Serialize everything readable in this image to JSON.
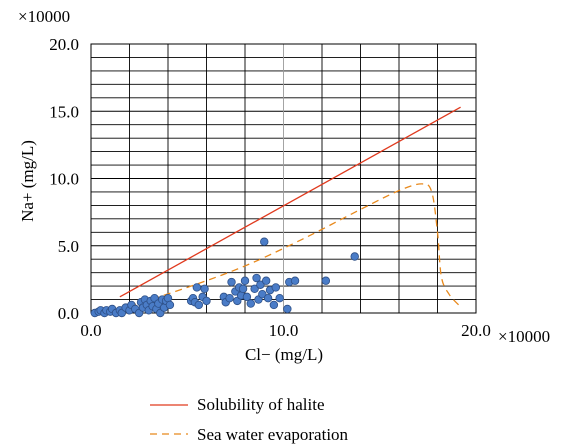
{
  "chart_data": {
    "type": "scatter",
    "xlabel": "Cl− (mg/L)",
    "ylabel": "Na+ (mg/L)",
    "x_scale_label": "×10000",
    "y_scale_label": "×10000",
    "xlim": [
      0,
      20
    ],
    "ylim": [
      0,
      20
    ],
    "x_ticks": [
      0,
      10,
      20
    ],
    "x_tick_labels": [
      "0.0",
      "10.0",
      "20.0"
    ],
    "y_ticks": [
      0,
      5,
      10,
      15,
      20
    ],
    "y_tick_labels": [
      "0.0",
      "5.0",
      "10.0",
      "15.0",
      "20.0"
    ],
    "grid": true,
    "legend_position": "bottom-left",
    "colors": {
      "halite": "#e03a1e",
      "seawater": "#e8891c",
      "points": "#4a7cc7",
      "grid": "#000000"
    },
    "lines": [
      {
        "name": "Solubility of halite",
        "style": "solid",
        "points": [
          [
            1.5,
            1.2
          ],
          [
            19.2,
            15.3
          ]
        ]
      },
      {
        "name": "Sea water evaporation",
        "style": "dashed",
        "points": [
          [
            2.0,
            0.5
          ],
          [
            5,
            1.9
          ],
          [
            8,
            3.5
          ],
          [
            11,
            5.5
          ],
          [
            14,
            7.7
          ],
          [
            16,
            9.1
          ],
          [
            17.2,
            9.6
          ],
          [
            17.7,
            9.0
          ],
          [
            18.0,
            6.0
          ],
          [
            18.2,
            2.7
          ],
          [
            18.6,
            1.4
          ],
          [
            19.1,
            0.6
          ]
        ]
      }
    ],
    "series": [
      {
        "marker": "circle",
        "points": [
          [
            0.2,
            0.0
          ],
          [
            0.4,
            0.1
          ],
          [
            0.5,
            0.2
          ],
          [
            0.7,
            0.0
          ],
          [
            0.8,
            0.2
          ],
          [
            1.0,
            0.1
          ],
          [
            1.1,
            0.3
          ],
          [
            1.3,
            0.0
          ],
          [
            1.5,
            0.2
          ],
          [
            1.6,
            0.0
          ],
          [
            1.8,
            0.4
          ],
          [
            2.0,
            0.2
          ],
          [
            2.1,
            0.6
          ],
          [
            2.3,
            0.3
          ],
          [
            2.5,
            0.0
          ],
          [
            2.6,
            0.8
          ],
          [
            2.7,
            0.4
          ],
          [
            2.8,
            1.0
          ],
          [
            2.9,
            0.6
          ],
          [
            3.0,
            0.2
          ],
          [
            3.1,
            0.9
          ],
          [
            3.2,
            0.5
          ],
          [
            3.3,
            1.1
          ],
          [
            3.4,
            0.3
          ],
          [
            3.5,
            0.7
          ],
          [
            3.6,
            0.0
          ],
          [
            3.7,
            1.0
          ],
          [
            3.8,
            0.4
          ],
          [
            3.9,
            0.9
          ],
          [
            4.0,
            1.1
          ],
          [
            4.1,
            0.6
          ],
          [
            5.2,
            0.9
          ],
          [
            5.3,
            1.1
          ],
          [
            5.4,
            0.8
          ],
          [
            5.5,
            1.9
          ],
          [
            5.6,
            0.6
          ],
          [
            5.8,
            1.2
          ],
          [
            5.9,
            1.8
          ],
          [
            6.0,
            0.9
          ],
          [
            6.9,
            1.2
          ],
          [
            7.0,
            0.8
          ],
          [
            7.2,
            1.1
          ],
          [
            7.3,
            2.3
          ],
          [
            7.5,
            1.6
          ],
          [
            7.6,
            0.9
          ],
          [
            7.7,
            1.9
          ],
          [
            7.8,
            1.3
          ],
          [
            7.9,
            1.8
          ],
          [
            8.0,
            2.4
          ],
          [
            8.1,
            1.2
          ],
          [
            8.3,
            0.7
          ],
          [
            8.5,
            1.8
          ],
          [
            8.6,
            2.6
          ],
          [
            8.7,
            1.0
          ],
          [
            8.8,
            2.1
          ],
          [
            8.9,
            1.4
          ],
          [
            9.0,
            5.3
          ],
          [
            9.1,
            2.4
          ],
          [
            9.2,
            1.1
          ],
          [
            9.3,
            1.7
          ],
          [
            9.5,
            0.6
          ],
          [
            9.6,
            1.9
          ],
          [
            9.8,
            1.1
          ],
          [
            10.2,
            0.3
          ],
          [
            10.3,
            2.3
          ],
          [
            10.6,
            2.4
          ],
          [
            12.2,
            2.4
          ],
          [
            13.7,
            4.2
          ]
        ]
      }
    ]
  }
}
